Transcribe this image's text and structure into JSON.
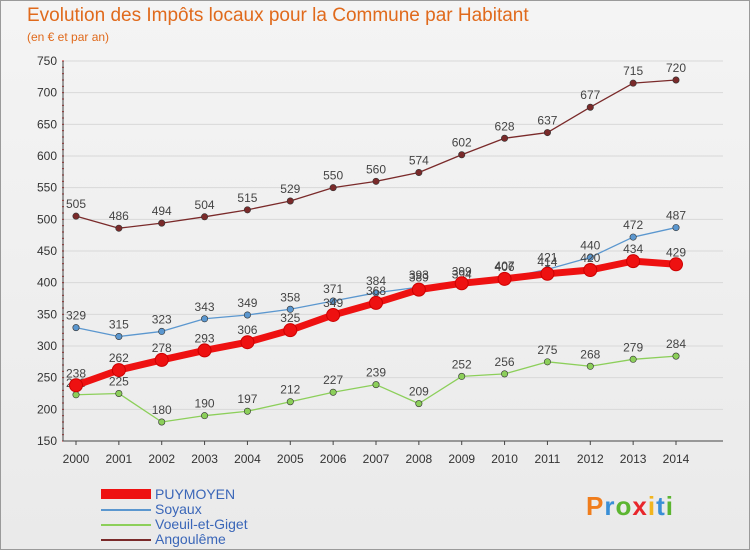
{
  "header": {
    "title": "Evolution des Impôts locaux pour la Commune par Habitant",
    "subtitle": "(en € et par an)"
  },
  "chart_data": {
    "type": "line",
    "title": "Evolution des Impôts locaux pour la Commune par Habitant",
    "ylabel": "(en € et par an)",
    "x": [
      "2000",
      "2001",
      "2002",
      "2003",
      "2004",
      "2005",
      "2006",
      "2007",
      "2008",
      "2009",
      "2010",
      "2011",
      "2012",
      "2013",
      "2014"
    ],
    "ylim": [
      150,
      750
    ],
    "yticks": [
      150,
      200,
      250,
      300,
      350,
      400,
      450,
      500,
      550,
      600,
      650,
      700,
      750
    ],
    "legend_position": "bottom-left",
    "series": [
      {
        "name": "Angoulême",
        "color": "#7a2a2a",
        "values": [
          505,
          486,
          494,
          504,
          515,
          529,
          550,
          560,
          574,
          602,
          628,
          637,
          677,
          715,
          720
        ]
      },
      {
        "name": "Soyaux",
        "color": "#5b97cf",
        "values": [
          329,
          315,
          323,
          343,
          349,
          358,
          371,
          384,
          393,
          394,
          407,
          421,
          440,
          472,
          487
        ]
      },
      {
        "name": "Voeuil-et-Giget",
        "color": "#8ccf5a",
        "values": [
          223,
          225,
          180,
          190,
          197,
          212,
          227,
          239,
          209,
          252,
          256,
          275,
          268,
          279,
          284
        ]
      },
      {
        "name": "PUYMOYEN",
        "color": "#ee1111",
        "values": [
          238,
          262,
          278,
          293,
          306,
          325,
          349,
          368,
          389,
          399,
          406,
          414,
          420,
          434,
          429
        ]
      }
    ]
  },
  "logo": {
    "letters": [
      "P",
      "r",
      "o",
      "x",
      "i",
      "t",
      "i"
    ],
    "colors": [
      "#f07d1c",
      "#3a8fd6",
      "#5cb531",
      "#e8262b",
      "#f2b51e",
      "#3a8fd6",
      "#5cb531"
    ]
  }
}
